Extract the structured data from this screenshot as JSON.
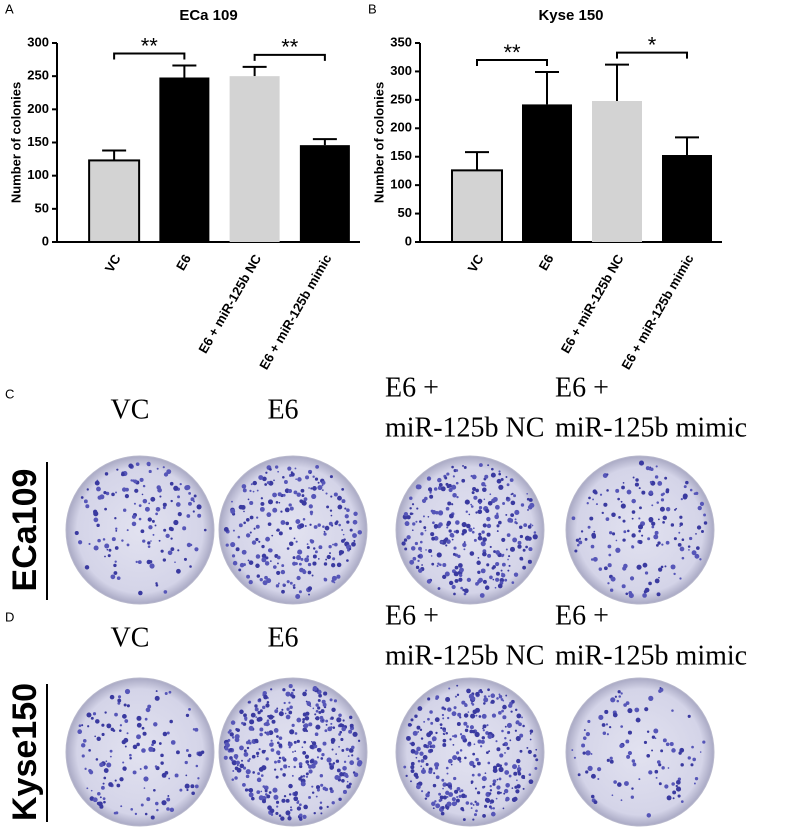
{
  "chart_data": [
    {
      "type": "bar",
      "panel_label": "A",
      "title": "ECa 109",
      "y_label": "Number of colonies",
      "categories": [
        "VC",
        "E6",
        "E6 + miR-125b NC",
        "E6 + miR-125b mimic"
      ],
      "values": [
        123,
        248,
        250,
        146
      ],
      "errors": [
        15,
        18,
        14,
        9
      ],
      "colors": [
        "#d3d3d3",
        "#000000",
        "#d3d3d3",
        "#000000"
      ],
      "ylim": [
        0,
        300
      ],
      "yticks": [
        0,
        50,
        100,
        150,
        200,
        250,
        300
      ],
      "significance": [
        {
          "text": "**",
          "from": 0,
          "to": 1
        },
        {
          "text": "**",
          "from": 2,
          "to": 3
        }
      ]
    },
    {
      "type": "bar",
      "panel_label": "B",
      "title": "Kyse 150",
      "y_label": "Number of colonies",
      "categories": [
        "VC",
        "E6",
        "E6 + miR-125b NC",
        "E6 + miR-125b mimic"
      ],
      "values": [
        126,
        242,
        248,
        153
      ],
      "errors": [
        32,
        57,
        64,
        31
      ],
      "colors": [
        "#d3d3d3",
        "#000000",
        "#d3d3d3",
        "#000000"
      ],
      "ylim": [
        0,
        350
      ],
      "yticks": [
        0,
        50,
        100,
        150,
        200,
        250,
        300,
        350
      ],
      "significance": [
        {
          "text": "**",
          "from": 0,
          "to": 1
        },
        {
          "text": "*",
          "from": 2,
          "to": 3
        }
      ]
    }
  ],
  "photo_panels": [
    {
      "panel_label": "C",
      "row_label": "ECa109",
      "wells": [
        [
          "VC"
        ],
        [
          "E6"
        ],
        [
          "E6 +",
          "miR-125b NC"
        ],
        [
          "E6 +",
          "miR-125b mimic"
        ]
      ]
    },
    {
      "panel_label": "D",
      "row_label": "Kyse150",
      "wells": [
        [
          "VC"
        ],
        [
          "E6"
        ],
        [
          "E6 +",
          "miR-125b NC"
        ],
        [
          "E6 +",
          "miR-125b mimic"
        ]
      ]
    }
  ]
}
